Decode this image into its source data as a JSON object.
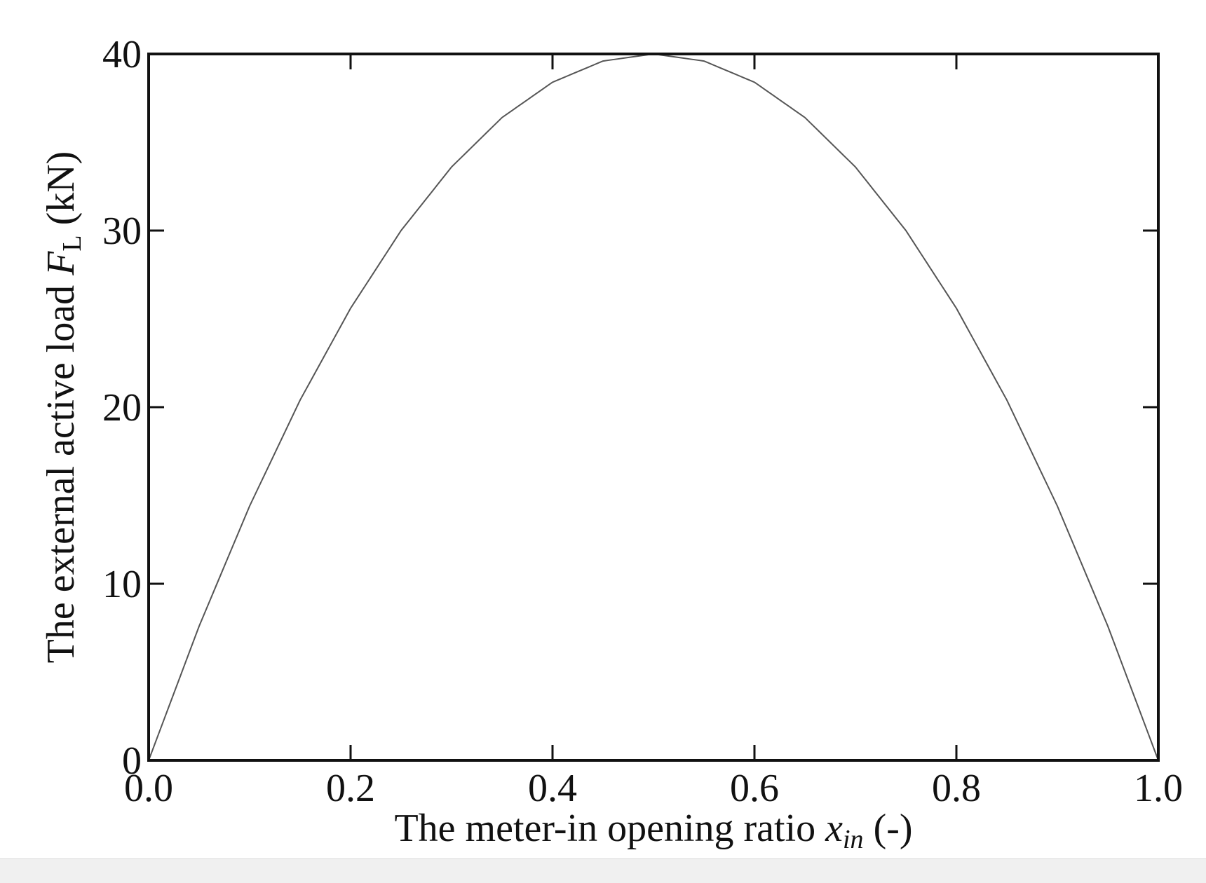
{
  "chart_data": {
    "type": "line",
    "title": "",
    "xlabel": {
      "main": "The meter-in opening ratio ",
      "symbol": "x",
      "subscript": "in",
      "suffix": " (-)"
    },
    "ylabel": {
      "main": "The external active load ",
      "symbol": "F",
      "subscript": "L",
      "suffix": " (kN)"
    },
    "xlim": [
      0.0,
      1.0
    ],
    "ylim": [
      0,
      40
    ],
    "xticks": [
      "0.0",
      "0.2",
      "0.4",
      "0.6",
      "0.8",
      "1.0"
    ],
    "yticks": [
      "0",
      "10",
      "20",
      "30",
      "40"
    ],
    "grid": false,
    "legend": "none",
    "line_color": "#555555",
    "series": [
      {
        "x": [
          0.0,
          0.05,
          0.1,
          0.15,
          0.2,
          0.25,
          0.3,
          0.35,
          0.4,
          0.45,
          0.5,
          0.55,
          0.6,
          0.65,
          0.7,
          0.75,
          0.8,
          0.85,
          0.9,
          0.95,
          1.0
        ],
        "y": [
          0.0,
          7.6,
          14.4,
          20.4,
          25.6,
          30.0,
          33.6,
          36.4,
          38.4,
          39.6,
          40.0,
          39.6,
          38.4,
          36.4,
          33.6,
          30.0,
          25.6,
          20.4,
          14.4,
          7.6,
          0.0
        ]
      }
    ]
  }
}
